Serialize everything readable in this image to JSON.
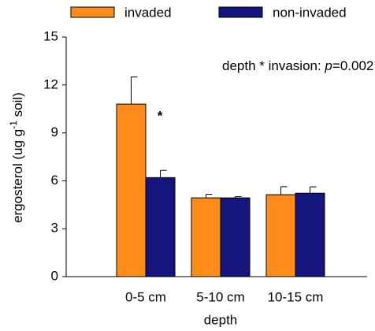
{
  "chart_data": {
    "type": "bar",
    "categories": [
      "0-5 cm",
      "5-10 cm",
      "10-15 cm"
    ],
    "series": [
      {
        "name": "invaded",
        "color": "#ff8c1a",
        "values": [
          10.8,
          4.93,
          5.13
        ],
        "errors": [
          1.7,
          0.22,
          0.5
        ]
      },
      {
        "name": "non-invaded",
        "color": "#15157e",
        "values": [
          6.2,
          4.93,
          5.22
        ],
        "errors": [
          0.45,
          0.08,
          0.4
        ]
      }
    ],
    "ylim": [
      0,
      15
    ],
    "yticks": [
      0,
      3,
      6,
      9,
      12,
      15
    ],
    "xlabel": "depth",
    "ylabel_parts": [
      "ergosterol (ug g",
      "-1",
      " soil)"
    ],
    "annotation_parts": [
      "depth *  invasion: ",
      "p",
      "=0.002"
    ],
    "significance_mark": "*"
  }
}
